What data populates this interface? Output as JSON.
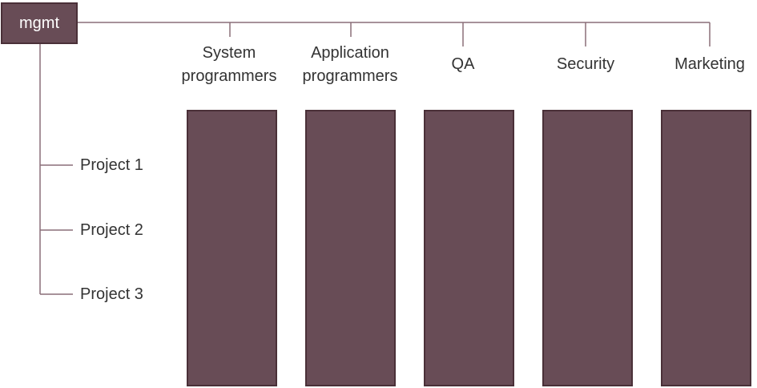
{
  "root": {
    "label": "mgmt"
  },
  "departments": [
    {
      "label": "System\nprogrammers"
    },
    {
      "label": "Application\nprogrammers"
    },
    {
      "label": "QA"
    },
    {
      "label": "Security"
    },
    {
      "label": "Marketing"
    }
  ],
  "projects": [
    {
      "label": "Project 1"
    },
    {
      "label": "Project 2"
    },
    {
      "label": "Project 3"
    }
  ],
  "colors": {
    "box_fill": "#684c56",
    "box_border": "#4a3038",
    "line": "#8a6f78",
    "text": "#333333"
  }
}
